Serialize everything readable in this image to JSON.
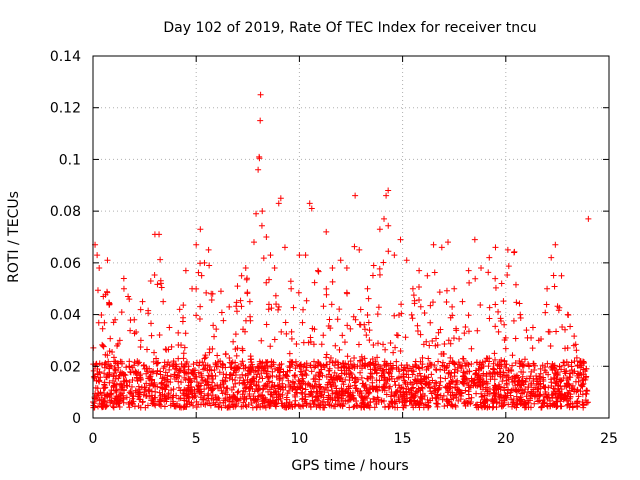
{
  "chart_data": {
    "type": "scatter",
    "title": "Day 102 of 2019, Rate Of TEC Index for receiver tncu",
    "xlabel": "GPS time / hours",
    "ylabel": "ROTI / TECUs",
    "xlim": [
      0,
      25
    ],
    "ylim": [
      0,
      0.14
    ],
    "xticks": [
      "0",
      "5",
      "10",
      "15",
      "20",
      "25"
    ],
    "yticks": [
      "0",
      "0.02",
      "0.04",
      "0.06",
      "0.08",
      "0.1",
      "0.12",
      "0.14"
    ],
    "grid": true,
    "legend": "none",
    "marker": "+",
    "color": "#ff0000",
    "series": [
      {
        "points": [
          [
            0.1,
            0.067
          ],
          [
            0.2,
            0.063
          ],
          [
            0.3,
            0.058
          ],
          [
            0.5,
            0.047
          ],
          [
            0.7,
            0.061
          ],
          [
            0.8,
            0.044
          ],
          [
            1.0,
            0.037
          ],
          [
            1.3,
            0.03
          ],
          [
            1.5,
            0.05
          ],
          [
            1.7,
            0.047
          ],
          [
            2.0,
            0.038
          ],
          [
            2.4,
            0.045
          ],
          [
            2.8,
            0.053
          ],
          [
            3.0,
            0.071
          ],
          [
            3.2,
            0.071
          ],
          [
            3.4,
            0.045
          ],
          [
            3.7,
            0.035
          ],
          [
            4.2,
            0.042
          ],
          [
            4.5,
            0.057
          ],
          [
            4.8,
            0.05
          ],
          [
            5.0,
            0.067
          ],
          [
            5.2,
            0.073
          ],
          [
            5.4,
            0.06
          ],
          [
            5.6,
            0.065
          ],
          [
            5.8,
            0.048
          ],
          [
            6.2,
            0.049
          ],
          [
            6.6,
            0.043
          ],
          [
            7.0,
            0.051
          ],
          [
            7.2,
            0.055
          ],
          [
            7.4,
            0.058
          ],
          [
            7.6,
            0.045
          ],
          [
            7.8,
            0.068
          ],
          [
            7.9,
            0.079
          ],
          [
            8.0,
            0.096
          ],
          [
            8.05,
            0.101
          ],
          [
            8.1,
            0.115
          ],
          [
            8.12,
            0.125
          ],
          [
            8.2,
            0.08
          ],
          [
            8.4,
            0.07
          ],
          [
            8.6,
            0.063
          ],
          [
            8.8,
            0.058
          ],
          [
            9.0,
            0.083
          ],
          [
            9.1,
            0.085
          ],
          [
            9.3,
            0.066
          ],
          [
            9.6,
            0.05
          ],
          [
            10.0,
            0.063
          ],
          [
            10.3,
            0.063
          ],
          [
            10.5,
            0.083
          ],
          [
            10.6,
            0.081
          ],
          [
            10.9,
            0.057
          ],
          [
            11.3,
            0.072
          ],
          [
            11.6,
            0.058
          ],
          [
            12.0,
            0.061
          ],
          [
            12.3,
            0.058
          ],
          [
            12.7,
            0.086
          ],
          [
            12.9,
            0.065
          ],
          [
            13.3,
            0.05
          ],
          [
            13.6,
            0.059
          ],
          [
            13.9,
            0.073
          ],
          [
            14.1,
            0.077
          ],
          [
            14.2,
            0.086
          ],
          [
            14.3,
            0.088
          ],
          [
            14.6,
            0.063
          ],
          [
            14.9,
            0.069
          ],
          [
            15.2,
            0.061
          ],
          [
            15.5,
            0.05
          ],
          [
            15.8,
            0.057
          ],
          [
            16.2,
            0.055
          ],
          [
            16.5,
            0.067
          ],
          [
            16.9,
            0.066
          ],
          [
            17.2,
            0.068
          ],
          [
            17.5,
            0.05
          ],
          [
            17.9,
            0.045
          ],
          [
            18.2,
            0.057
          ],
          [
            18.5,
            0.069
          ],
          [
            18.8,
            0.058
          ],
          [
            19.2,
            0.062
          ],
          [
            19.5,
            0.066
          ],
          [
            19.8,
            0.052
          ],
          [
            20.1,
            0.065
          ],
          [
            20.4,
            0.064
          ],
          [
            20.7,
            0.04
          ],
          [
            21.0,
            0.034
          ],
          [
            21.3,
            0.027
          ],
          [
            21.6,
            0.03
          ],
          [
            22.0,
            0.05
          ],
          [
            22.2,
            0.062
          ],
          [
            22.4,
            0.067
          ],
          [
            22.7,
            0.055
          ],
          [
            23.0,
            0.04
          ],
          [
            23.3,
            0.028
          ],
          [
            23.6,
            0.022
          ],
          [
            23.9,
            0.019
          ],
          [
            24.0,
            0.077
          ]
        ]
      }
    ]
  }
}
